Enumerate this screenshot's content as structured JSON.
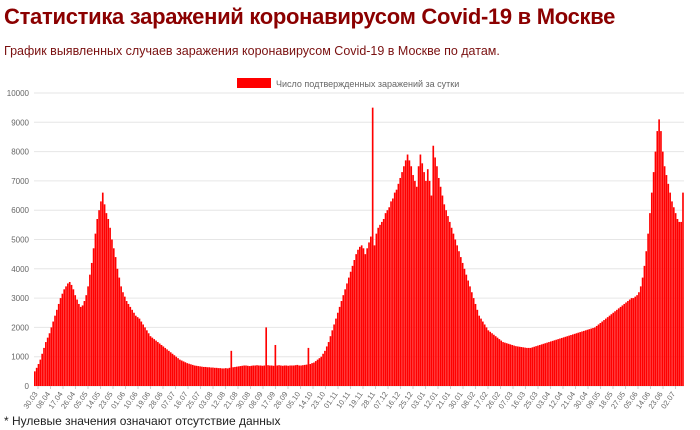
{
  "header": {
    "title": "Статистика заражений коронавирусом Covid-19 в Москве",
    "subtitle": "График выявленных случаев заражения коронавирусом Covid-19 в Москве по датам."
  },
  "footnote": "* Нулевые значения означают отсутствие данных",
  "colors": {
    "bar": "#ff0000",
    "grid": "#e6e6e6",
    "axis_text": "#666666"
  },
  "chart_data": {
    "type": "bar",
    "legend": {
      "label": "Число подтвержденных заражений за сутки",
      "position": "top"
    },
    "ylim": [
      0,
      10000
    ],
    "y_ticks": [
      0,
      1000,
      2000,
      3000,
      4000,
      5000,
      6000,
      7000,
      8000,
      9000,
      10000
    ],
    "x_tick_labels": [
      "30.03",
      "08.04",
      "17.04",
      "26.04",
      "05.05",
      "14.05",
      "23.05",
      "01.06",
      "10.06",
      "19.06",
      "28.06",
      "07.07",
      "16.07",
      "25.07",
      "03.08",
      "12.08",
      "21.08",
      "30.08",
      "08.09",
      "17.09",
      "26.09",
      "05.10",
      "14.10",
      "23.10",
      "01.11",
      "10.11",
      "19.11",
      "28.11",
      "07.12",
      "16.12",
      "25.12",
      "03.01",
      "12.01",
      "21.01",
      "30.01",
      "08.02",
      "17.02",
      "26.02",
      "07.03",
      "16.03",
      "25.03",
      "03.04",
      "12.04",
      "21.04",
      "30.04",
      "09.05",
      "18.05",
      "27.05",
      "05.06",
      "14.06",
      "23.06",
      "02.07"
    ],
    "grid": true,
    "series": [
      {
        "values": [
          500,
          620,
          750,
          900,
          1100,
          1300,
          1500,
          1650,
          1800,
          2000,
          2200,
          2400,
          2600,
          2800,
          3000,
          3150,
          3300,
          3400,
          3500,
          3550,
          3450,
          3300,
          3100,
          2950,
          2800,
          2700,
          2750,
          2900,
          3100,
          3400,
          3800,
          4200,
          4700,
          5200,
          5700,
          6000,
          6300,
          6600,
          6200,
          5900,
          5700,
          5400,
          5000,
          4700,
          4400,
          4000,
          3700,
          3400,
          3200,
          3050,
          2900,
          2800,
          2700,
          2600,
          2500,
          2400,
          2350,
          2300,
          2200,
          2100,
          2000,
          1900,
          1800,
          1700,
          1650,
          1600,
          1550,
          1500,
          1450,
          1400,
          1350,
          1300,
          1250,
          1200,
          1150,
          1100,
          1050,
          1000,
          950,
          900,
          870,
          840,
          810,
          780,
          760,
          740,
          720,
          700,
          690,
          680,
          670,
          660,
          650,
          650,
          640,
          640,
          630,
          630,
          620,
          620,
          610,
          610,
          600,
          600,
          610,
          600,
          620,
          1200,
          640,
          650,
          660,
          670,
          680,
          690,
          700,
          700,
          690,
          680,
          690,
          700,
          700,
          710,
          700,
          700,
          690,
          700,
          2000,
          710,
          700,
          700,
          690,
          1400,
          700,
          710,
          700,
          690,
          700,
          700,
          690,
          700,
          700,
          700,
          710,
          720,
          700,
          700,
          710,
          720,
          730,
          1300,
          750,
          780,
          800,
          850,
          900,
          950,
          1000,
          1100,
          1200,
          1350,
          1500,
          1700,
          1900,
          2100,
          2300,
          2500,
          2700,
          2900,
          3100,
          3300,
          3500,
          3700,
          3900,
          4100,
          4300,
          4500,
          4650,
          4750,
          4800,
          4700,
          4500,
          4700,
          4900,
          5100,
          9500,
          4800,
          5200,
          5400,
          5500,
          5600,
          5700,
          5900,
          6000,
          6100,
          6300,
          6400,
          6600,
          6700,
          6900,
          7100,
          7300,
          7500,
          7700,
          7900,
          7700,
          7500,
          7200,
          7000,
          6800,
          7500,
          7900,
          7600,
          7300,
          7000,
          7400,
          7000,
          6500,
          8200,
          7800,
          7500,
          7100,
          6800,
          6500,
          6200,
          6000,
          5800,
          5600,
          5400,
          5200,
          5000,
          4800,
          4600,
          4400,
          4200,
          4000,
          3800,
          3600,
          3400,
          3200,
          3000,
          2800,
          2600,
          2400,
          2300,
          2200,
          2100,
          2000,
          1900,
          1850,
          1800,
          1750,
          1700,
          1650,
          1600,
          1550,
          1500,
          1480,
          1460,
          1440,
          1420,
          1400,
          1380,
          1360,
          1350,
          1340,
          1330,
          1320,
          1310,
          1300,
          1300,
          1300,
          1320,
          1340,
          1360,
          1380,
          1400,
          1420,
          1440,
          1460,
          1480,
          1500,
          1520,
          1540,
          1560,
          1580,
          1600,
          1620,
          1640,
          1660,
          1680,
          1700,
          1720,
          1740,
          1760,
          1780,
          1800,
          1820,
          1840,
          1860,
          1880,
          1900,
          1920,
          1940,
          1960,
          1980,
          2000,
          2050,
          2100,
          2150,
          2200,
          2250,
          2300,
          2350,
          2400,
          2450,
          2500,
          2550,
          2600,
          2650,
          2700,
          2750,
          2800,
          2850,
          2900,
          2950,
          3000,
          3000,
          3050,
          3100,
          3200,
          3400,
          3700,
          4100,
          4600,
          5200,
          5900,
          6600,
          7300,
          8000,
          8700,
          9100,
          8700,
          8000,
          7500,
          7200,
          6900,
          6600,
          6300,
          6100,
          5900,
          5700,
          5600,
          5600,
          6600
        ]
      }
    ]
  }
}
